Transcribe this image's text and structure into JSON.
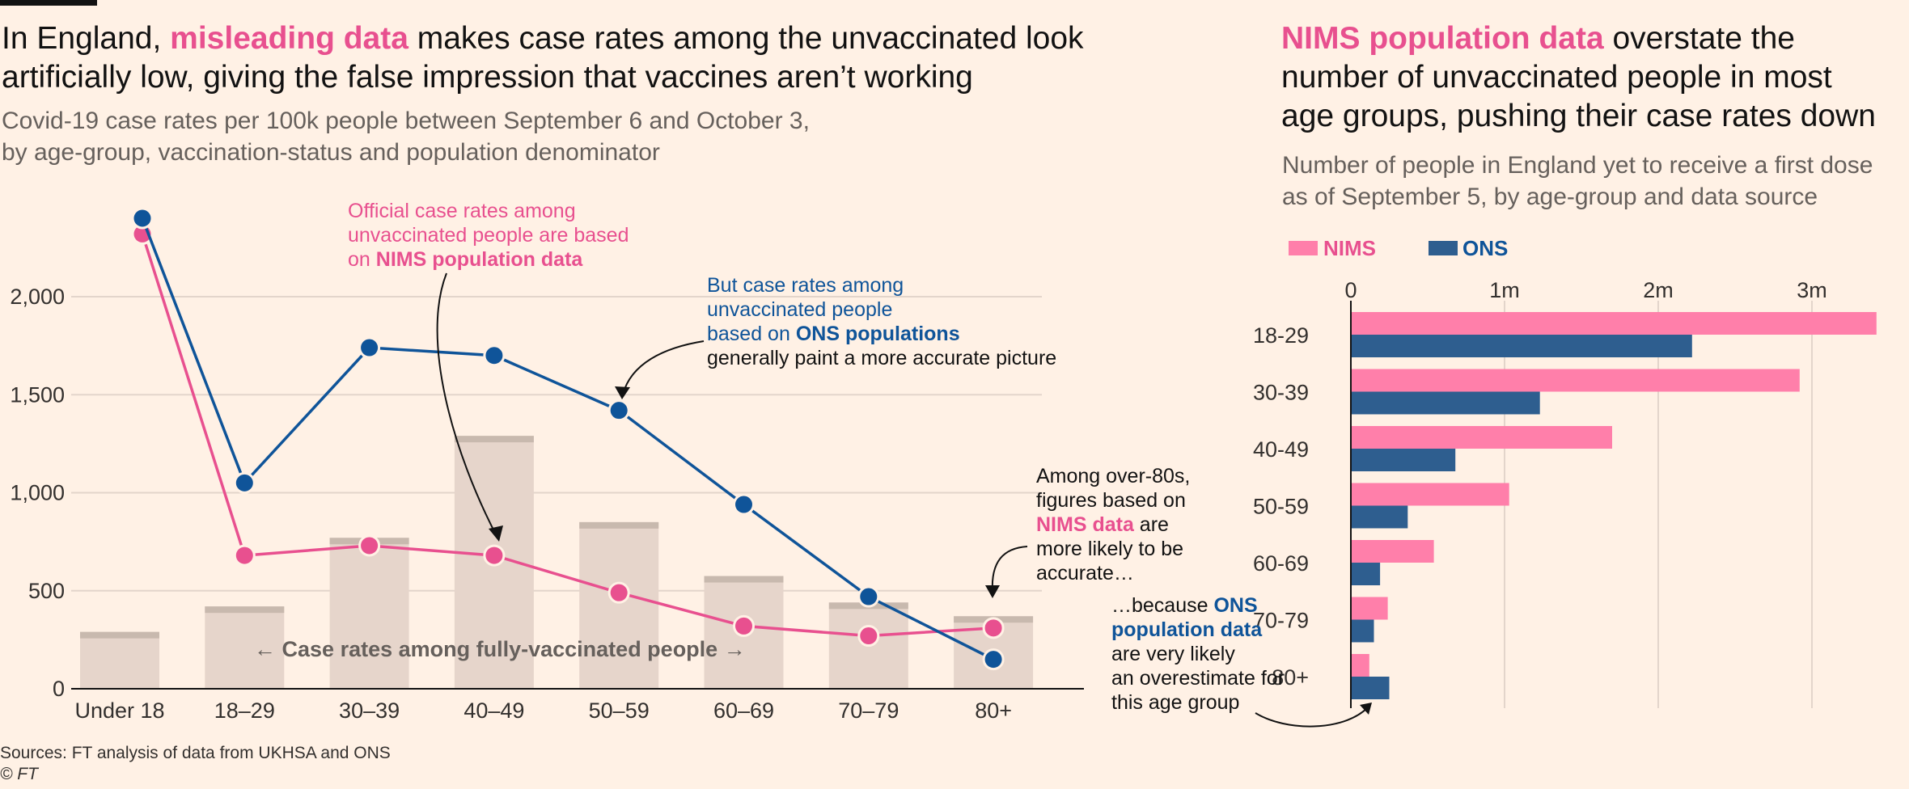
{
  "left": {
    "headline": {
      "pre": "In England, ",
      "highlight": "misleading data",
      "post_line1": " makes case rates among the unvaccinated look",
      "line2": "artificially low, giving the false impression that vaccines aren’t working"
    },
    "subtitle_line1": "Covid-19 case rates per 100k people between September 6 and October 3,",
    "subtitle_line2": "by age-group, vaccination-status and population denominator",
    "annotation_nims": {
      "line1": "Official case rates among",
      "line2": "unvaccinated people are based",
      "line3_pre": "on ",
      "line3_bold": "NIMS population data"
    },
    "annotation_ons": {
      "line1": "But case rates among",
      "line2": "unvaccinated people",
      "line3_pre": "based on ",
      "line3_bold": "ONS populations",
      "line4": "generally paint a more accurate picture"
    },
    "annotation_over80": {
      "line1": "Among over-80s,",
      "line2": "figures based on",
      "line3_bold": "NIMS data",
      "line3_post": " are",
      "line4": "more likely to be",
      "line5": "accurate…"
    },
    "annotation_because": {
      "line1_pre": "…because ",
      "line1_bold": "ONS",
      "line2_bold": "population data",
      "line3": "are very likely",
      "line4": "an overestimate for",
      "line5": "this age group"
    },
    "bar_label": "Case rates among fully-vaccinated people",
    "arrow_left": "←",
    "arrow_right": "→"
  },
  "right": {
    "headline": {
      "highlight": "NIMS population data",
      "post_line1": " overstate the",
      "line2": "number of unvaccinated people in most",
      "line3": "age groups, pushing their case rates down"
    },
    "subtitle_line1": "Number of people in England yet to receive a first dose",
    "subtitle_line2": "as of September 5, by age-group and data source"
  },
  "sources": "Sources: FT analysis of data from UKHSA and ONS",
  "copyright": "© FT",
  "colors": {
    "nims": "#e8508f",
    "nims_bar": "#ff7faa",
    "ons": "#0f5499",
    "ons_bar": "#2e5e8f",
    "vax_bar": "#e6d5cb",
    "vax_cap": "#c8b9ae",
    "grid": "#e3d5cb",
    "axis": "#66605c"
  },
  "chart_data": [
    {
      "type": "line",
      "categories": [
        "Under 18",
        "18–29",
        "30–39",
        "40–49",
        "50–59",
        "60–69",
        "70–79",
        "80+"
      ],
      "yticks": [
        0,
        500,
        1000,
        1500,
        2000
      ],
      "ytick_labels": [
        "0",
        "500",
        "1,000",
        "1,500",
        "2,000"
      ],
      "ylim": [
        0,
        2500
      ],
      "grid": true,
      "series": [
        {
          "name": "NIMS",
          "values": [
            2320,
            680,
            730,
            680,
            490,
            320,
            270,
            310
          ]
        },
        {
          "name": "ONS",
          "values": [
            2400,
            1050,
            1740,
            1700,
            1420,
            940,
            470,
            150
          ]
        },
        {
          "name": "Case rates among fully-vaccinated people",
          "type": "bar",
          "values": [
            290,
            420,
            770,
            1290,
            850,
            575,
            440,
            370
          ]
        }
      ]
    },
    {
      "type": "bar",
      "orientation": "horizontal",
      "categories": [
        "18-29",
        "30-39",
        "40-49",
        "50-59",
        "60-69",
        "70-79",
        "80+"
      ],
      "xticks": [
        0,
        1000000,
        2000000,
        3000000
      ],
      "xtick_labels": [
        "0",
        "1m",
        "2m",
        "3m"
      ],
      "xlim": [
        0,
        3600000
      ],
      "legend": "top-left",
      "grid": true,
      "series": [
        {
          "name": "NIMS",
          "values": [
            3420000,
            2920000,
            1700000,
            1030000,
            540000,
            240000,
            120000
          ]
        },
        {
          "name": "ONS",
          "values": [
            2220000,
            1230000,
            680000,
            370000,
            190000,
            150000,
            250000
          ]
        }
      ]
    }
  ]
}
